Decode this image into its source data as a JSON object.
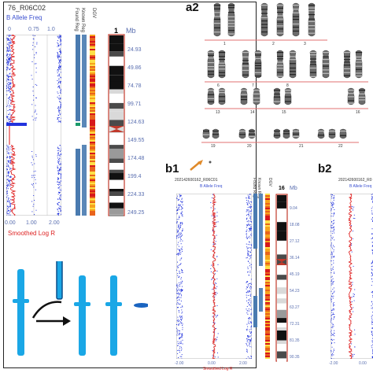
{
  "colors": {
    "baf_blue": "#2233dd",
    "lrr_red": "#dd1111",
    "segment_blue": "#4a7bb0",
    "cyan": "#1aa7e6",
    "ideogram_red": "#c0392b"
  },
  "panel_a1": {
    "sample_id": "76_R06C02",
    "top_label": "B Allele Freq",
    "top_ticks": [
      "0",
      "0.75",
      "1.0"
    ],
    "bottom_ticks": [
      "0.00",
      "1.00",
      "2.00"
    ],
    "bottom_label": "Smoothed Log R",
    "col_labels": [
      "Known Reg",
      "Found Reg",
      "DGV"
    ],
    "chrom_number": "1",
    "mb_label": "Mb",
    "mb_ticks": [
      "24.93",
      "49.86",
      "74.78",
      "99.71",
      "124.63",
      "149.55",
      "174.48",
      "199.4",
      "224.33",
      "249.25"
    ]
  },
  "panel_a2": {
    "letter": "a2",
    "chromosome_labels": [
      "1",
      "2",
      "3",
      "6",
      "7",
      "8",
      "13",
      "14",
      "15",
      "16",
      "19",
      "20",
      "21",
      "22"
    ]
  },
  "panel_b1": {
    "letter": "b1",
    "sample_id": "202142600162_R06C01",
    "top_label": "B Allele Freq",
    "col_labels": [
      "Known Reg",
      "Found Reg",
      "DGV"
    ],
    "chrom_number": "16",
    "mb_label": "Mb",
    "mb_ticks": [
      "9.04",
      "18.08",
      "27.12",
      "36.14",
      "45.19",
      "54.23",
      "63.27",
      "72.31",
      "81.35",
      "90.35"
    ],
    "bottom_ticks": [
      "-2.00",
      "0.00",
      "2.00"
    ],
    "bottom_label": "Smoothed Log R"
  },
  "panel_b2": {
    "letter": "b2",
    "sample_id": "202142600162_R0",
    "top_label": "B Allele Freq",
    "bottom_ticks": [
      "-2.00",
      "0.00"
    ]
  }
}
